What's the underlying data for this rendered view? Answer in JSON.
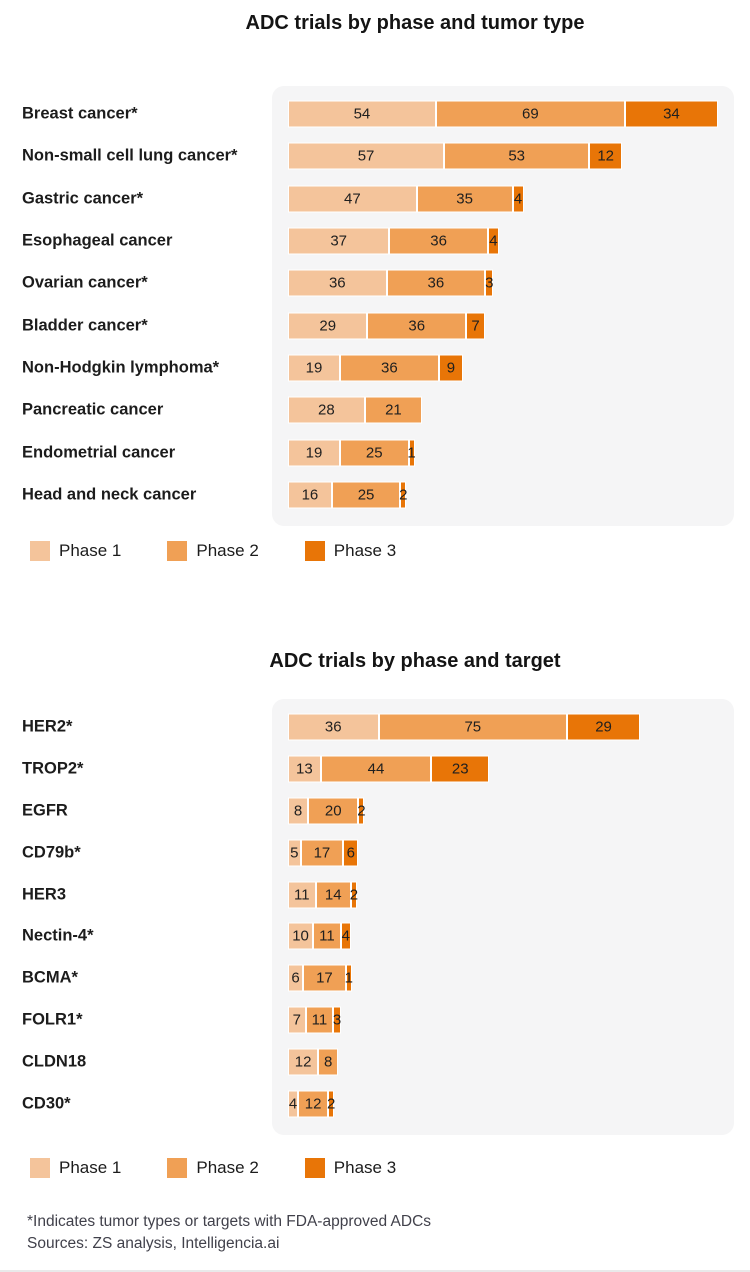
{
  "colors": {
    "phase1": "#F4C49B",
    "phase2": "#F0A055",
    "phase3": "#E87507",
    "panel_background": "#F5F5F6",
    "segment_stroke": "#FFFFFF"
  },
  "legend": {
    "items": [
      {
        "label": "Phase 1"
      },
      {
        "label": "Phase 2"
      },
      {
        "label": "Phase 3"
      }
    ]
  },
  "footer": {
    "footnote": "*Indicates tumor types or targets with FDA-approved ADCs",
    "sources": "Sources: ZS analysis, Intelligencia.ai"
  },
  "chart_data": [
    {
      "type": "bar",
      "orientation": "horizontal",
      "stacked": true,
      "title": "ADC trials by phase and tumor type",
      "xlabel": "",
      "ylabel": "",
      "xlim": [
        0,
        157
      ],
      "grid": false,
      "legend_position": "bottom",
      "categories": [
        "Breast cancer*",
        "Non-small cell lung cancer*",
        "Gastric cancer*",
        "Esophageal cancer",
        "Ovarian cancer*",
        "Bladder cancer*",
        "Non-Hodgkin lymphoma*",
        "Pancreatic cancer",
        "Endometrial cancer",
        "Head and neck cancer"
      ],
      "series": [
        {
          "name": "Phase 1",
          "values": [
            54,
            57,
            47,
            37,
            36,
            29,
            19,
            28,
            19,
            16
          ]
        },
        {
          "name": "Phase 2",
          "values": [
            69,
            53,
            35,
            36,
            36,
            36,
            36,
            21,
            25,
            25
          ]
        },
        {
          "name": "Phase 3",
          "values": [
            34,
            12,
            4,
            4,
            3,
            7,
            9,
            null,
            1,
            2
          ]
        }
      ]
    },
    {
      "type": "bar",
      "orientation": "horizontal",
      "stacked": true,
      "title": "ADC trials by phase and target",
      "xlabel": "",
      "ylabel": "",
      "xlim": [
        0,
        171
      ],
      "grid": false,
      "legend_position": "bottom",
      "categories": [
        "HER2*",
        "TROP2*",
        "EGFR",
        "CD79b*",
        "HER3",
        "Nectin-4*",
        "BCMA*",
        "FOLR1*",
        "CLDN18",
        "CD30*"
      ],
      "series": [
        {
          "name": "Phase 1",
          "values": [
            36,
            13,
            8,
            5,
            11,
            10,
            6,
            7,
            12,
            4
          ]
        },
        {
          "name": "Phase 2",
          "values": [
            75,
            44,
            20,
            17,
            14,
            11,
            17,
            11,
            8,
            12
          ]
        },
        {
          "name": "Phase 3",
          "values": [
            29,
            23,
            2,
            6,
            2,
            4,
            1,
            3,
            null,
            2
          ]
        }
      ]
    }
  ]
}
